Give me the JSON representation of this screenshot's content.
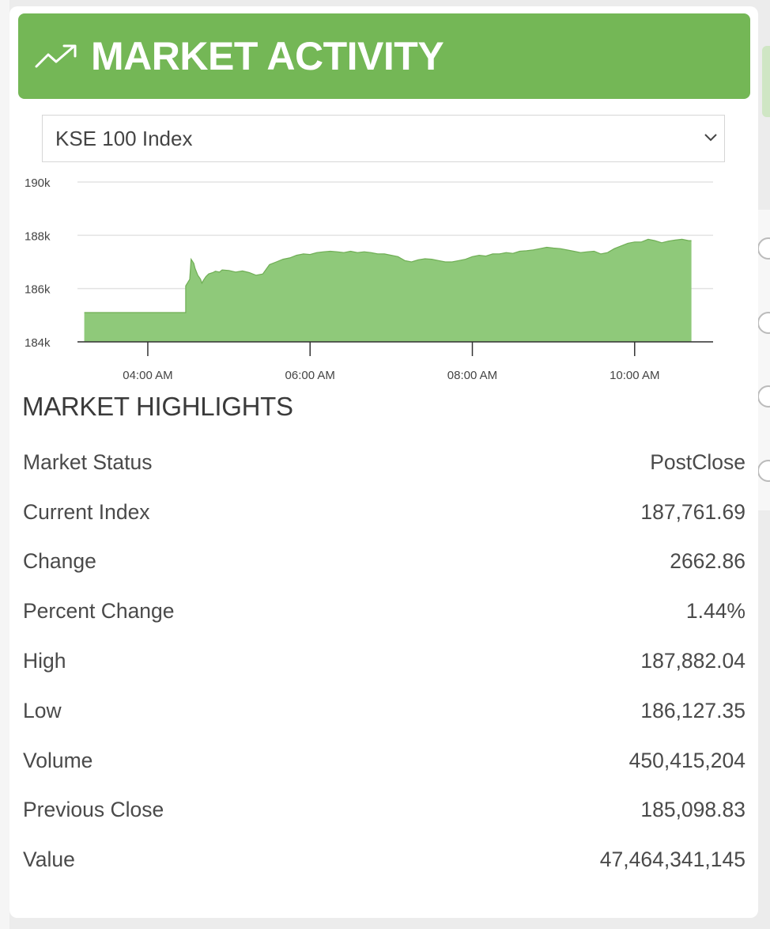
{
  "header": {
    "title": "MARKET ACTIVITY",
    "icon": "trend-up-icon",
    "color": "#74b756"
  },
  "index_select": {
    "value": "KSE 100 Index"
  },
  "chart_data": {
    "type": "area",
    "color": "#8fc97a",
    "line_color": "#6fae55",
    "ylim": [
      184000,
      190000
    ],
    "yticks": [
      184000,
      186000,
      188000,
      190000
    ],
    "ytick_labels": [
      "184k",
      "186k",
      "188k",
      "190k"
    ],
    "xlim": [
      "03:08",
      "10:58"
    ],
    "xticks": [
      "04:00",
      "06:00",
      "08:00",
      "10:00"
    ],
    "xtick_labels": [
      "04:00 AM",
      "06:00 AM",
      "08:00 AM",
      "10:00 AM"
    ],
    "grid": true,
    "series": [
      {
        "x": [
          "03:13",
          "04:28",
          "04:28",
          "04:31",
          "04:32",
          "04:34",
          "04:35",
          "04:37",
          "04:39",
          "04:40",
          "04:41",
          "04:43",
          "04:45",
          "04:48",
          "04:50",
          "04:53",
          "04:55",
          "05:00",
          "05:05",
          "05:10",
          "05:15",
          "05:20",
          "05:25",
          "05:30",
          "05:35",
          "05:40",
          "05:45",
          "05:50",
          "05:55",
          "06:00",
          "06:05",
          "06:10",
          "06:15",
          "06:20",
          "06:25",
          "06:30",
          "06:35",
          "06:40",
          "06:45",
          "06:50",
          "06:55",
          "07:00",
          "07:05",
          "07:10",
          "07:15",
          "07:20",
          "07:25",
          "07:30",
          "07:35",
          "07:40",
          "07:45",
          "07:50",
          "07:55",
          "08:00",
          "08:05",
          "08:10",
          "08:15",
          "08:20",
          "08:25",
          "08:30",
          "08:35",
          "08:40",
          "08:45",
          "08:50",
          "08:55",
          "09:00",
          "09:05",
          "09:10",
          "09:15",
          "09:20",
          "09:25",
          "09:30",
          "09:35",
          "09:40",
          "09:45",
          "09:50",
          "09:55",
          "10:00",
          "10:05",
          "10:10",
          "10:15",
          "10:20",
          "10:25",
          "10:30",
          "10:35",
          "10:40",
          "10:42"
        ],
        "values": [
          185100,
          185100,
          186100,
          186350,
          187100,
          186950,
          186750,
          186500,
          186350,
          186200,
          186300,
          186450,
          186550,
          186600,
          186650,
          186620,
          186700,
          186680,
          186620,
          186660,
          186600,
          186500,
          186550,
          186900,
          187000,
          187100,
          187150,
          187250,
          187300,
          187280,
          187350,
          187380,
          187400,
          187380,
          187350,
          187400,
          187350,
          187380,
          187350,
          187300,
          187300,
          187250,
          187200,
          187050,
          187000,
          187080,
          187120,
          187100,
          187050,
          187000,
          187000,
          187050,
          187100,
          187200,
          187250,
          187220,
          187300,
          187300,
          187350,
          187320,
          187400,
          187420,
          187450,
          187500,
          187550,
          187520,
          187500,
          187450,
          187400,
          187350,
          187380,
          187400,
          187300,
          187350,
          187500,
          187600,
          187700,
          187750,
          187750,
          187850,
          187800,
          187720,
          187780,
          187820,
          187850,
          187800,
          187800
        ]
      }
    ]
  },
  "highlights": {
    "title": "MARKET HIGHLIGHTS",
    "rows": [
      {
        "label": "Market Status",
        "value": "PostClose"
      },
      {
        "label": "Current Index",
        "value": "187,761.69"
      },
      {
        "label": "Change",
        "value": "2662.86"
      },
      {
        "label": "Percent Change",
        "value": "1.44%"
      },
      {
        "label": "High",
        "value": "187,882.04"
      },
      {
        "label": "Low",
        "value": "186,127.35"
      },
      {
        "label": "Volume",
        "value": "450,415,204"
      },
      {
        "label": "Previous Close",
        "value": "185,098.83"
      },
      {
        "label": "Value",
        "value": "47,464,341,145"
      }
    ]
  }
}
